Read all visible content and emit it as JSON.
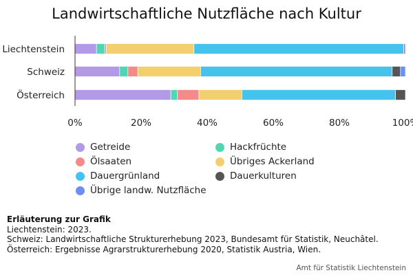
{
  "chart_data": {
    "type": "bar",
    "orientation": "horizontal",
    "stacked": true,
    "title": "Landwirtschaftliche Nutzfläche nach Kultur",
    "categories": [
      "Liechtenstein",
      "Schweiz",
      "Österreich"
    ],
    "xlim": [
      0,
      100
    ],
    "xticks": [
      0,
      20,
      40,
      60,
      80,
      100
    ],
    "xtick_labels": [
      "0%",
      "20%",
      "40%",
      "60%",
      "80%",
      "100%"
    ],
    "grid": false,
    "legend_position": "bottom",
    "series": [
      {
        "name": "Getreide",
        "color": "#b39ae8",
        "values": [
          6.5,
          13.5,
          29.0
        ]
      },
      {
        "name": "Hackfrüchte",
        "color": "#4fd6b4",
        "values": [
          2.5,
          2.5,
          2.0
        ]
      },
      {
        "name": "Ölsaaten",
        "color": "#f58a8a",
        "values": [
          0.5,
          3.0,
          6.5
        ]
      },
      {
        "name": "Übriges Ackerland",
        "color": "#f3cf6d",
        "values": [
          26.5,
          19.0,
          13.0
        ]
      },
      {
        "name": "Dauergrünland",
        "color": "#46c2ef",
        "values": [
          63.5,
          58.0,
          46.5
        ]
      },
      {
        "name": "Dauerkulturen",
        "color": "#555555",
        "values": [
          0.0,
          2.5,
          3.0
        ]
      },
      {
        "name": "Übrige landw. Nutzfläche",
        "color": "#6b8ff2",
        "values": [
          0.5,
          1.5,
          0.0
        ]
      }
    ]
  },
  "legend_order": [
    0,
    1,
    2,
    3,
    4,
    5,
    6
  ],
  "notes": {
    "heading": "Erläuterung zur Grafik",
    "lines": [
      "Liechtenstein: 2023.",
      "Schweiz: Landwirtschaftliche Strukturerhebung 2023, Bundesamt für Statistik, Neuchâtel.",
      "Österreich: Ergebnisse Agrarstrukturerhebung 2020, Statistik Austria, Wien."
    ]
  },
  "source": "Amt für Statistik Liechtenstein"
}
